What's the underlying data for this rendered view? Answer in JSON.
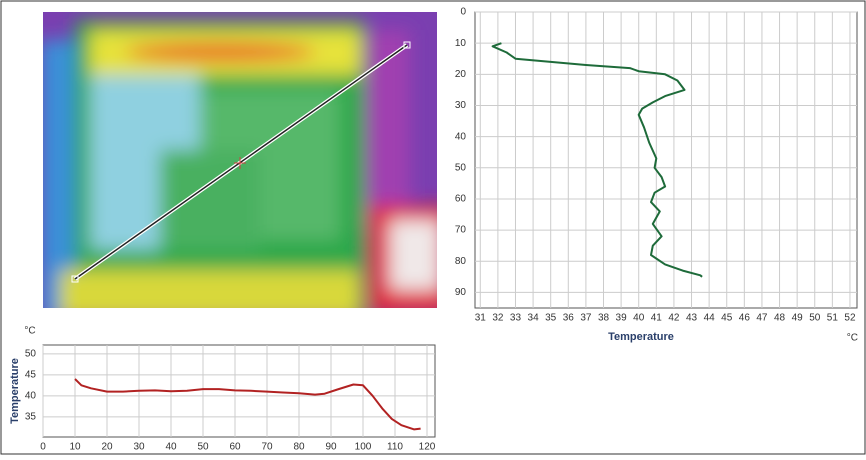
{
  "chart_data": [
    {
      "type": "line",
      "y_inverted": true,
      "grid": true,
      "xlabel": "Temperature",
      "x_unit": "°C",
      "xlim": [
        30.7,
        52.4
      ],
      "xticks": [
        31,
        32,
        33,
        34,
        35,
        36,
        37,
        38,
        39,
        40,
        41,
        42,
        43,
        44,
        45,
        46,
        47,
        48,
        49,
        50,
        51,
        52
      ],
      "ylim": [
        0,
        95
      ],
      "yticks": [
        0,
        10,
        20,
        30,
        40,
        50,
        60,
        70,
        80,
        90
      ],
      "series": [
        {
          "color": "#1e6b3a",
          "x": [
            32.2,
            31.7,
            32.5,
            33,
            35,
            37,
            39.5,
            40,
            41.5,
            42.2,
            42.6,
            41.5,
            40.8,
            40.2,
            40,
            40.3,
            40.6,
            41,
            40.9,
            41.3,
            41.5,
            40.9,
            40.7,
            41.2,
            40.8,
            41.3,
            40.8,
            40.7,
            41.5,
            42.5,
            43.5,
            43.6
          ],
          "values": [
            10,
            11,
            13,
            15,
            16,
            17,
            18,
            19,
            20,
            22,
            25,
            27,
            29,
            31,
            33,
            37,
            42,
            47,
            50,
            53,
            56,
            58,
            61,
            64,
            68,
            72,
            75,
            78,
            81,
            83,
            84.5,
            85
          ]
        }
      ]
    },
    {
      "type": "line",
      "grid": true,
      "ylabel": "Temperature",
      "y_unit": "°C",
      "xlim": [
        0,
        122.5
      ],
      "xticks": [
        0,
        10,
        20,
        30,
        40,
        50,
        60,
        70,
        80,
        90,
        100,
        110,
        120
      ],
      "ylim": [
        30.2,
        52.1
      ],
      "yticks": [
        35,
        40,
        45,
        50
      ],
      "series": [
        {
          "color": "#b22222",
          "x": [
            10,
            12,
            15,
            20,
            25,
            30,
            35,
            40,
            45,
            50,
            55,
            60,
            65,
            70,
            75,
            80,
            85,
            88,
            92,
            97,
            100,
            103,
            106,
            109,
            112,
            116,
            118
          ],
          "values": [
            44,
            42.5,
            41.8,
            41,
            41,
            41.2,
            41.3,
            41.1,
            41.2,
            41.6,
            41.6,
            41.3,
            41.2,
            41,
            40.8,
            40.6,
            40.3,
            40.5,
            41.5,
            42.7,
            42.5,
            40,
            37,
            34.5,
            33,
            32,
            32.2
          ]
        }
      ]
    }
  ]
}
